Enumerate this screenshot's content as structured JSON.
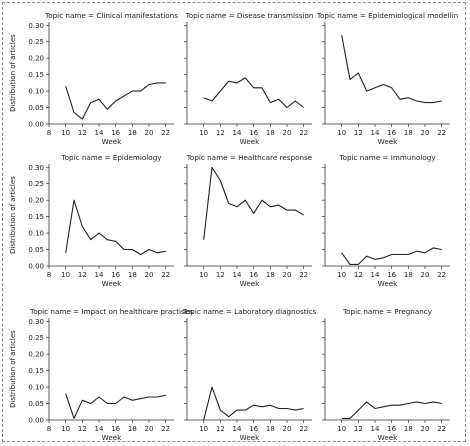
{
  "figure": {
    "frame_color": "#888888",
    "line_color": "#222222"
  },
  "chart_data": [
    {
      "type": "line",
      "title": "Topic name = Clinical manifestations",
      "xlabel": "Week",
      "ylabel": "Distribution of articles",
      "x": [
        10,
        11,
        12,
        13,
        14,
        15,
        16,
        17,
        18,
        19,
        20,
        21,
        22
      ],
      "values": [
        0.115,
        0.035,
        0.015,
        0.065,
        0.075,
        0.045,
        0.07,
        0.085,
        0.1,
        0.1,
        0.12,
        0.125,
        0.125
      ],
      "xlim": [
        8,
        23
      ],
      "ylim": [
        0,
        0.31
      ],
      "xticks": [
        8,
        10,
        12,
        14,
        16,
        18,
        20,
        22
      ],
      "yticks": [
        0.0,
        0.05,
        0.1,
        0.15,
        0.2,
        0.25,
        0.3
      ],
      "show_yticklabels": true,
      "grid": false
    },
    {
      "type": "line",
      "title": "Topic name = Disease transmission",
      "xlabel": "Week",
      "ylabel": "",
      "x": [
        10,
        11,
        12,
        13,
        14,
        15,
        16,
        17,
        18,
        19,
        20,
        21,
        22
      ],
      "values": [
        0.08,
        0.07,
        0.1,
        0.13,
        0.125,
        0.14,
        0.11,
        0.11,
        0.065,
        0.075,
        0.05,
        0.07,
        0.05
      ],
      "xlim": [
        8,
        23
      ],
      "ylim": [
        0,
        0.31
      ],
      "xticks": [
        10,
        12,
        14,
        16,
        18,
        20,
        22
      ],
      "yticks": [
        0.0,
        0.05,
        0.1,
        0.15,
        0.2,
        0.25,
        0.3
      ],
      "show_yticklabels": false,
      "grid": false
    },
    {
      "type": "line",
      "title": "Topic name = Epidemiological modellin",
      "xlabel": "Week",
      "ylabel": "",
      "x": [
        10,
        11,
        12,
        13,
        14,
        15,
        16,
        17,
        18,
        19,
        20,
        21,
        22
      ],
      "values": [
        0.27,
        0.135,
        0.155,
        0.1,
        0.11,
        0.12,
        0.11,
        0.075,
        0.08,
        0.07,
        0.065,
        0.065,
        0.07
      ],
      "xlim": [
        8,
        23
      ],
      "ylim": [
        0,
        0.31
      ],
      "xticks": [
        10,
        12,
        14,
        16,
        18,
        20,
        22
      ],
      "yticks": [
        0.0,
        0.05,
        0.1,
        0.15,
        0.2,
        0.25,
        0.3
      ],
      "show_yticklabels": false,
      "grid": false
    },
    {
      "type": "line",
      "title": "Topic name = Epidemiology",
      "xlabel": "Week",
      "ylabel": "Distribution of articles",
      "x": [
        10,
        11,
        12,
        13,
        14,
        15,
        16,
        17,
        18,
        19,
        20,
        21,
        22
      ],
      "values": [
        0.04,
        0.2,
        0.12,
        0.08,
        0.1,
        0.08,
        0.075,
        0.05,
        0.05,
        0.035,
        0.05,
        0.04,
        0.045
      ],
      "xlim": [
        8,
        23
      ],
      "ylim": [
        0,
        0.31
      ],
      "xticks": [
        8,
        10,
        12,
        14,
        16,
        18,
        20,
        22
      ],
      "yticks": [
        0.0,
        0.05,
        0.1,
        0.15,
        0.2,
        0.25,
        0.3
      ],
      "show_yticklabels": true,
      "grid": false
    },
    {
      "type": "line",
      "title": "Topic name = Healthcare response",
      "xlabel": "Week",
      "ylabel": "",
      "x": [
        10,
        11,
        12,
        13,
        14,
        15,
        16,
        17,
        18,
        19,
        20,
        21,
        22
      ],
      "values": [
        0.08,
        0.3,
        0.26,
        0.19,
        0.18,
        0.2,
        0.16,
        0.2,
        0.18,
        0.185,
        0.17,
        0.17,
        0.155
      ],
      "xlim": [
        8,
        23
      ],
      "ylim": [
        0,
        0.31
      ],
      "xticks": [
        10,
        12,
        14,
        16,
        18,
        20,
        22
      ],
      "yticks": [
        0.0,
        0.05,
        0.1,
        0.15,
        0.2,
        0.25,
        0.3
      ],
      "show_yticklabels": false,
      "grid": false
    },
    {
      "type": "line",
      "title": "Topic name = Immunology",
      "xlabel": "Week",
      "ylabel": "",
      "x": [
        10,
        11,
        12,
        13,
        14,
        15,
        16,
        17,
        18,
        19,
        20,
        21,
        22
      ],
      "values": [
        0.04,
        0.005,
        0.005,
        0.03,
        0.02,
        0.025,
        0.035,
        0.035,
        0.035,
        0.045,
        0.04,
        0.055,
        0.05
      ],
      "xlim": [
        8,
        23
      ],
      "ylim": [
        0,
        0.31
      ],
      "xticks": [
        10,
        12,
        14,
        16,
        18,
        20,
        22
      ],
      "yticks": [
        0.0,
        0.05,
        0.1,
        0.15,
        0.2,
        0.25,
        0.3
      ],
      "show_yticklabels": false,
      "grid": false
    },
    {
      "type": "line",
      "title": "Topic name = Impact on healthcare practises",
      "xlabel": "Week",
      "ylabel": "Distribution of articles",
      "x": [
        10,
        11,
        12,
        13,
        14,
        15,
        16,
        17,
        18,
        19,
        20,
        21,
        22
      ],
      "values": [
        0.08,
        0.005,
        0.06,
        0.05,
        0.07,
        0.05,
        0.05,
        0.07,
        0.06,
        0.065,
        0.07,
        0.07,
        0.075
      ],
      "xlim": [
        8,
        23
      ],
      "ylim": [
        0,
        0.31
      ],
      "xticks": [
        8,
        10,
        12,
        14,
        16,
        18,
        20,
        22
      ],
      "yticks": [
        0.0,
        0.05,
        0.1,
        0.15,
        0.2,
        0.25,
        0.3
      ],
      "show_yticklabels": true,
      "grid": false
    },
    {
      "type": "line",
      "title": "Topic name = Laboratory diagnostics",
      "xlabel": "Week",
      "ylabel": "",
      "x": [
        10,
        11,
        12,
        13,
        14,
        15,
        16,
        17,
        18,
        19,
        20,
        21,
        22
      ],
      "values": [
        0.0,
        0.1,
        0.03,
        0.01,
        0.03,
        0.03,
        0.045,
        0.04,
        0.045,
        0.035,
        0.035,
        0.03,
        0.035
      ],
      "xlim": [
        8,
        23
      ],
      "ylim": [
        0,
        0.31
      ],
      "xticks": [
        10,
        12,
        14,
        16,
        18,
        20,
        22
      ],
      "yticks": [
        0.0,
        0.05,
        0.1,
        0.15,
        0.2,
        0.25,
        0.3
      ],
      "show_yticklabels": false,
      "grid": false
    },
    {
      "type": "line",
      "title": "Topic name = Pregnancy",
      "xlabel": "Week",
      "ylabel": "",
      "x": [
        10,
        11,
        12,
        13,
        14,
        15,
        16,
        17,
        18,
        19,
        20,
        21,
        22
      ],
      "values": [
        0.005,
        0.005,
        0.03,
        0.055,
        0.035,
        0.04,
        0.045,
        0.045,
        0.05,
        0.055,
        0.05,
        0.055,
        0.05
      ],
      "xlim": [
        8,
        23
      ],
      "ylim": [
        0,
        0.31
      ],
      "xticks": [
        10,
        12,
        14,
        16,
        18,
        20,
        22
      ],
      "yticks": [
        0.0,
        0.05,
        0.1,
        0.15,
        0.2,
        0.25,
        0.3
      ],
      "show_yticklabels": false,
      "grid": false
    }
  ]
}
